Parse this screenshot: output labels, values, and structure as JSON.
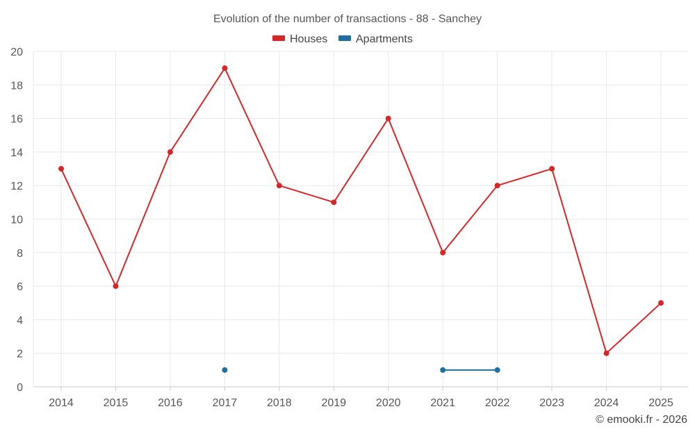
{
  "chart_data": {
    "type": "line",
    "title": "Evolution of the number of transactions - 88 - Sanchey",
    "xlabel": "",
    "ylabel": "",
    "categories": [
      "2014",
      "2015",
      "2016",
      "2017",
      "2018",
      "2019",
      "2020",
      "2021",
      "2022",
      "2023",
      "2024",
      "2025"
    ],
    "ylim": [
      0,
      20
    ],
    "yticks": [
      "0",
      "2",
      "4",
      "6",
      "8",
      "10",
      "12",
      "14",
      "16",
      "18",
      "20"
    ],
    "grid": true,
    "legend_position": "top-center",
    "series": [
      {
        "name": "Houses",
        "color": "#d62728",
        "values": [
          13,
          6,
          14,
          19,
          12,
          11,
          16,
          8,
          12,
          13,
          2,
          5
        ]
      },
      {
        "name": "Apartments",
        "color": "#1f6fa0",
        "values": [
          null,
          null,
          null,
          1,
          null,
          null,
          null,
          1,
          1,
          null,
          null,
          null
        ]
      }
    ]
  },
  "credit": "© emooki.fr - 2026"
}
